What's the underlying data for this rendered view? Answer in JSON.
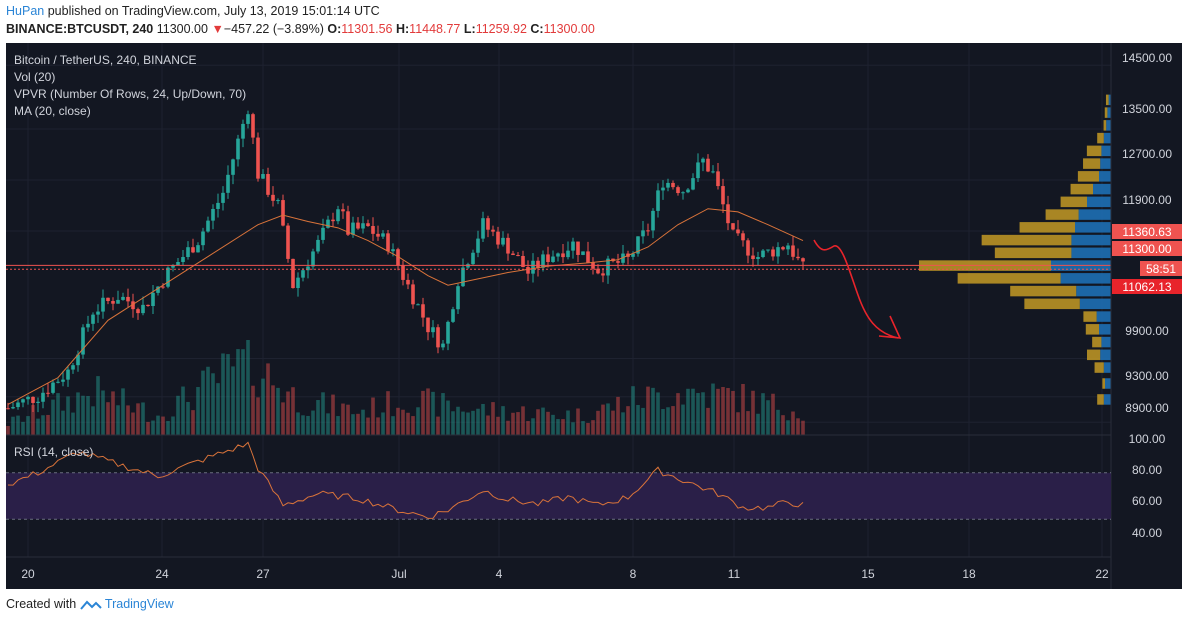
{
  "header": {
    "author": "HuPan",
    "published_text": "published on TradingView.com, July 13, 2019 15:01:14 UTC",
    "symbol": "BINANCE:BTCUSDT, 240",
    "last": "11300.00",
    "change_arrow": "▼",
    "change": "−457.22 (−3.89%)",
    "o_label": "O:",
    "o": "11301.56",
    "h_label": "H:",
    "h": "11448.77",
    "l_label": "L:",
    "l": "11259.92",
    "c_label": "C:",
    "c": "11300.00"
  },
  "legend": {
    "title": "Bitcoin / TetherUS, 240, BINANCE",
    "vol": "Vol (20)",
    "vpvr": "VPVR (Number Of Rows, 24, Up/Down, 70)",
    "ma": "MA (20, close)",
    "rsi": "RSI (14, close)"
  },
  "price_axis": {
    "ticks": [
      "14500.00",
      "13500.00",
      "12700.00",
      "11900.00",
      "9900.00",
      "9300.00",
      "8900.00"
    ],
    "badge_1": "11360.63",
    "badge_2": "11300.00",
    "badge_timer": "58:51",
    "badge_3": "11062.13"
  },
  "rsi_axis": {
    "ticks": [
      "100.00",
      "80.00",
      "60.00",
      "40.00"
    ],
    "upper_band": 70,
    "lower_band": 30
  },
  "time_axis": {
    "ticks": [
      "20",
      "24",
      "27",
      "Jul",
      "4",
      "8",
      "11",
      "15",
      "18",
      "22"
    ]
  },
  "colors": {
    "background": "#131722",
    "grid": "#1e2230",
    "up": "#26a69a",
    "down": "#ef5350",
    "ma": "#d9733a",
    "rsi_line": "#d9733a",
    "rsi_band_fill": "#2a1f48",
    "vpvr_up": "#1e6fb4",
    "vpvr_down": "#c49a24",
    "annotation_arrow": "#e8242b"
  },
  "chart_data": {
    "type": "candlestick",
    "title": "Bitcoin / TetherUS, 240, BINANCE",
    "y_range": [
      8700,
      14850
    ],
    "last_price": 11300,
    "level_lines": [
      11360.63,
      11300.0
    ],
    "price_path": [
      [
        0,
        9120
      ],
      [
        6,
        9320
      ],
      [
        12,
        9700
      ],
      [
        17,
        10650
      ],
      [
        22,
        10880
      ],
      [
        27,
        10700
      ],
      [
        32,
        11250
      ],
      [
        38,
        11760
      ],
      [
        43,
        12500
      ],
      [
        48,
        13850
      ],
      [
        50,
        12800
      ],
      [
        54,
        12300
      ],
      [
        57,
        11050
      ],
      [
        62,
        11700
      ],
      [
        66,
        12300
      ],
      [
        68,
        11900
      ],
      [
        72,
        11950
      ],
      [
        76,
        11700
      ],
      [
        79,
        11200
      ],
      [
        84,
        10400
      ],
      [
        87,
        10100
      ],
      [
        90,
        11150
      ],
      [
        95,
        12000
      ],
      [
        100,
        11650
      ],
      [
        104,
        11250
      ],
      [
        108,
        11500
      ],
      [
        113,
        11700
      ],
      [
        118,
        11300
      ],
      [
        124,
        11450
      ],
      [
        128,
        11950
      ],
      [
        131,
        12700
      ],
      [
        135,
        12550
      ],
      [
        139,
        13000
      ],
      [
        141,
        12800
      ],
      [
        145,
        11800
      ],
      [
        150,
        11500
      ],
      [
        156,
        11700
      ],
      [
        159,
        11300
      ]
    ],
    "ma_path": [
      [
        0,
        9180
      ],
      [
        10,
        9600
      ],
      [
        20,
        10500
      ],
      [
        30,
        11000
      ],
      [
        40,
        11500
      ],
      [
        50,
        12000
      ],
      [
        55,
        12150
      ],
      [
        60,
        12050
      ],
      [
        66,
        11950
      ],
      [
        72,
        11750
      ],
      [
        78,
        11500
      ],
      [
        84,
        11200
      ],
      [
        88,
        11050
      ],
      [
        94,
        11150
      ],
      [
        100,
        11250
      ],
      [
        108,
        11350
      ],
      [
        116,
        11400
      ],
      [
        122,
        11450
      ],
      [
        128,
        11650
      ],
      [
        134,
        12000
      ],
      [
        140,
        12250
      ],
      [
        146,
        12200
      ],
      [
        152,
        12000
      ],
      [
        159,
        11750
      ]
    ],
    "volume_path": [
      [
        0,
        0.15
      ],
      [
        17,
        0.55
      ],
      [
        30,
        0.25
      ],
      [
        48,
        0.95
      ],
      [
        58,
        0.45
      ],
      [
        70,
        0.3
      ],
      [
        80,
        0.45
      ],
      [
        90,
        0.35
      ],
      [
        100,
        0.3
      ],
      [
        115,
        0.25
      ],
      [
        125,
        0.45
      ],
      [
        135,
        0.55
      ],
      [
        145,
        0.5
      ],
      [
        159,
        0.3
      ]
    ],
    "rsi_path": [
      [
        0,
        60
      ],
      [
        6,
        70
      ],
      [
        14,
        88
      ],
      [
        20,
        80
      ],
      [
        30,
        67
      ],
      [
        40,
        83
      ],
      [
        48,
        95
      ],
      [
        50,
        74
      ],
      [
        55,
        42
      ],
      [
        62,
        52
      ],
      [
        70,
        48
      ],
      [
        78,
        38
      ],
      [
        84,
        32
      ],
      [
        88,
        38
      ],
      [
        95,
        55
      ],
      [
        100,
        47
      ],
      [
        106,
        43
      ],
      [
        112,
        49
      ],
      [
        118,
        42
      ],
      [
        124,
        49
      ],
      [
        130,
        72
      ],
      [
        136,
        62
      ],
      [
        142,
        52
      ],
      [
        147,
        40
      ],
      [
        152,
        40
      ],
      [
        156,
        45
      ],
      [
        159,
        42
      ]
    ],
    "vpvr": {
      "rows": [
        {
          "price": 13950,
          "up": 0.02,
          "down": 0.02
        },
        {
          "price": 13750,
          "up": 0.03,
          "down": 0.02
        },
        {
          "price": 13550,
          "up": 0.04,
          "down": 0.02
        },
        {
          "price": 13350,
          "up": 0.06,
          "down": 0.05
        },
        {
          "price": 13150,
          "up": 0.08,
          "down": 0.11
        },
        {
          "price": 12950,
          "up": 0.09,
          "down": 0.13
        },
        {
          "price": 12750,
          "up": 0.1,
          "down": 0.16
        },
        {
          "price": 12550,
          "up": 0.15,
          "down": 0.17
        },
        {
          "price": 12350,
          "up": 0.2,
          "down": 0.2
        },
        {
          "price": 12150,
          "up": 0.27,
          "down": 0.25
        },
        {
          "price": 11950,
          "up": 0.3,
          "down": 0.42
        },
        {
          "price": 11750,
          "up": 0.33,
          "down": 0.68
        },
        {
          "price": 11550,
          "up": 0.33,
          "down": 0.58
        },
        {
          "price": 11350,
          "up": 0.5,
          "down": 1.0
        },
        {
          "price": 11150,
          "up": 0.42,
          "down": 0.78
        },
        {
          "price": 10950,
          "up": 0.29,
          "down": 0.5
        },
        {
          "price": 10750,
          "up": 0.26,
          "down": 0.42
        },
        {
          "price": 10550,
          "up": 0.12,
          "down": 0.1
        },
        {
          "price": 10350,
          "up": 0.1,
          "down": 0.1
        },
        {
          "price": 10150,
          "up": 0.08,
          "down": 0.07
        },
        {
          "price": 9950,
          "up": 0.09,
          "down": 0.1
        },
        {
          "price": 9750,
          "up": 0.06,
          "down": 0.07
        },
        {
          "price": 9500,
          "up": 0.05,
          "down": 0.02
        },
        {
          "price": 9250,
          "up": 0.06,
          "down": 0.05
        }
      ]
    }
  },
  "footer": {
    "created_with": "Created with",
    "brand": "TradingView"
  }
}
